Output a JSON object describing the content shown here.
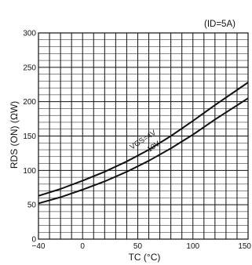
{
  "chart_data": {
    "type": "line",
    "condition": "(ID=5A)",
    "xlabel": "TC (°C)",
    "ylabel": "RDS (ON) (ΩW)",
    "xlim": [
      -40,
      150
    ],
    "ylim": [
      0,
      300
    ],
    "x_ticks": [
      "-40",
      "0",
      "50",
      "100",
      "150"
    ],
    "y_ticks": [
      "0",
      "50",
      "100",
      "150",
      "200",
      "250",
      "300"
    ],
    "grid": true,
    "series": [
      {
        "name": "VGS=4V",
        "x": [
          -40,
          -20,
          0,
          20,
          40,
          60,
          80,
          100,
          120,
          150
        ],
        "y": [
          63,
          73,
          85,
          98,
          113,
          130,
          150,
          172,
          195,
          228
        ]
      },
      {
        "name": "10V",
        "x": [
          -40,
          -20,
          0,
          20,
          40,
          60,
          80,
          100,
          120,
          150
        ],
        "y": [
          52,
          61,
          72,
          84,
          98,
          114,
          132,
          152,
          174,
          205
        ]
      }
    ],
    "colors": {
      "line": "#111111",
      "grid": "#111111"
    }
  }
}
